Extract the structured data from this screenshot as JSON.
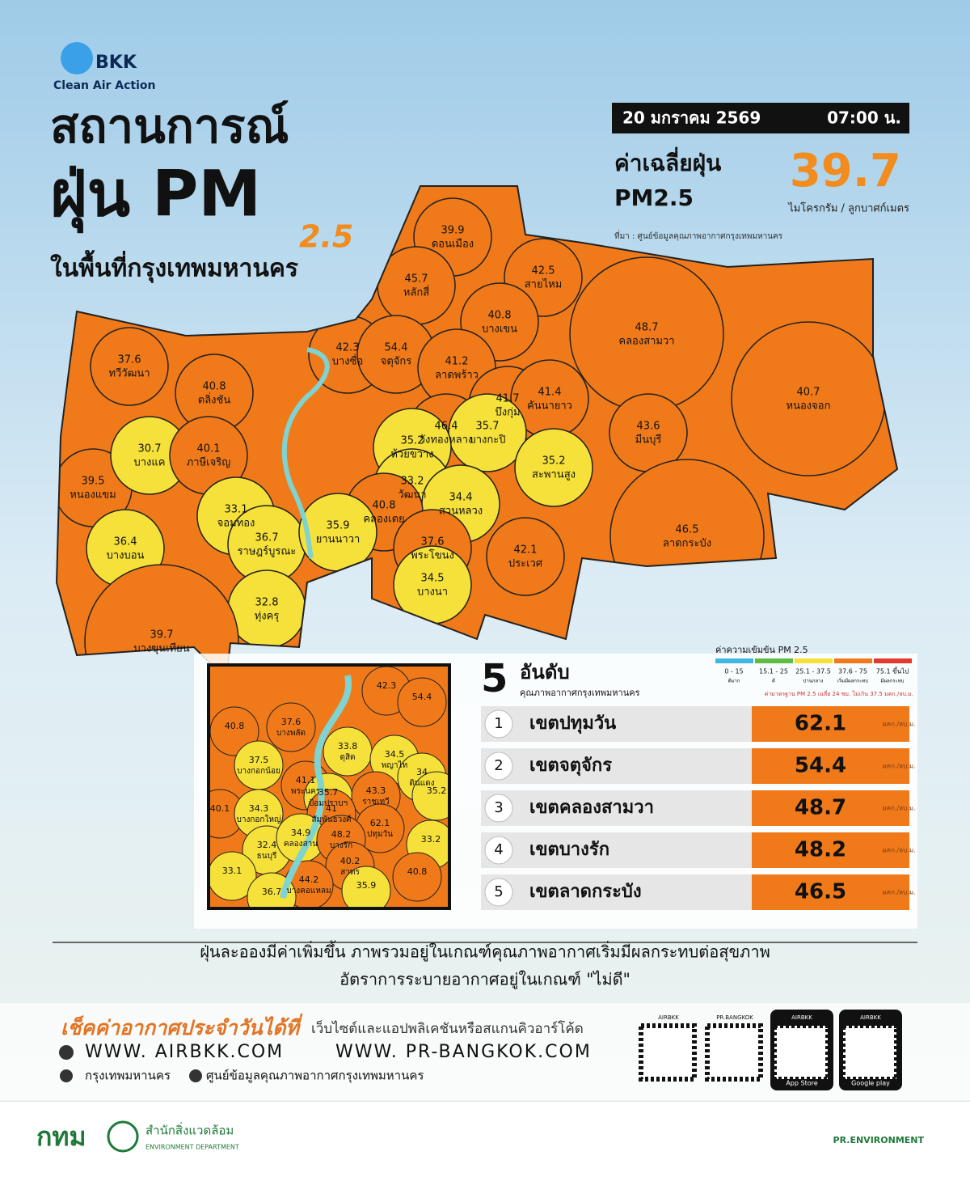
{
  "header": {
    "brand": "BKK",
    "brand_sub": "Clean Air Action",
    "title_line1": "สถานการณ์",
    "title_line2": "ฝุ่น PM",
    "title_sub": "2.5",
    "title_line3": "ในพื้นที่กรุงเทพมหานคร"
  },
  "date": "20 มกราคม 2569",
  "time": "07:00 น.",
  "average": {
    "label1": "ค่าเฉลี่ยฝุ่น",
    "label2": "PM2.5",
    "value": 39.7,
    "unit": "ไมโครกรัม / ลูกบาศก์เมตร"
  },
  "source": "ที่มา : ศูนย์ข้อมูลคุณภาพอากาศกรุงเทพมหานคร",
  "districts": [
    {
      "name": "ดอนเมือง",
      "value": 39.9
    },
    {
      "name": "สายไหม",
      "value": 42.5
    },
    {
      "name": "หลักสี่",
      "value": 45.7
    },
    {
      "name": "บางเขน",
      "value": 40.8
    },
    {
      "name": "คลองสามวา",
      "value": 48.7
    },
    {
      "name": "บางซื่อ",
      "value": 42.3
    },
    {
      "name": "จตุจักร",
      "value": 54.4
    },
    {
      "name": "ลาดพร้าว",
      "value": 41.2
    },
    {
      "name": "บึงกุ่ม",
      "value": 41.7
    },
    {
      "name": "คันนายาว",
      "value": 41.4
    },
    {
      "name": "หนองจอก",
      "value": 40.7
    },
    {
      "name": "ทวีวัฒนา",
      "value": 37.6
    },
    {
      "name": "ตลิ่งชัน",
      "value": 40.8
    },
    {
      "name": "มีนบุรี",
      "value": 43.6
    },
    {
      "name": "วังทองหลาง",
      "value": 46.4
    },
    {
      "name": "บางกะปิ",
      "value": 35.7
    },
    {
      "name": "ห้วยขวาง",
      "value": 35.2
    },
    {
      "name": "หนองแขม",
      "value": 39.5
    },
    {
      "name": "บางแค",
      "value": 30.7
    },
    {
      "name": "ภาษีเจริญ",
      "value": 40.1
    },
    {
      "name": "สะพานสูง",
      "value": 35.2
    },
    {
      "name": "วัฒนา",
      "value": 33.2
    },
    {
      "name": "สวนหลวง",
      "value": 34.4
    },
    {
      "name": "จอมทอง",
      "value": 33.1
    },
    {
      "name": "คลองเตย",
      "value": 40.8
    },
    {
      "name": "ลาดกระบัง",
      "value": 46.5
    },
    {
      "name": "บางบอน",
      "value": 36.4
    },
    {
      "name": "ราษฎร์บูรณะ",
      "value": 36.7
    },
    {
      "name": "ยานนาวา",
      "value": 35.9
    },
    {
      "name": "พระโขนง",
      "value": 37.6
    },
    {
      "name": "ประเวศ",
      "value": 42.1
    },
    {
      "name": "บางนา",
      "value": 34.5
    },
    {
      "name": "ทุ่งครุ",
      "value": 32.8
    },
    {
      "name": "บางขุนเทียน",
      "value": 39.7
    }
  ],
  "inset": [
    {
      "value": 42.3
    },
    {
      "value": 54.4
    },
    {
      "value": 40.8
    },
    {
      "name": "บางพลัด",
      "value": 37.6
    },
    {
      "name": "ดุสิต",
      "value": 33.8
    },
    {
      "name": "พญาไท",
      "value": 34.5
    },
    {
      "name": "บางกอกน้อย",
      "value": 37.5
    },
    {
      "name": "พระนคร",
      "value": 41.1
    },
    {
      "name": "ดินแดง",
      "value": 34.0
    },
    {
      "value": 35.2
    },
    {
      "value": 40.1
    },
    {
      "name": "ป้อมปราบฯ",
      "value": 35.7
    },
    {
      "name": "ราชเทวี",
      "value": 43.3
    },
    {
      "name": "บางกอกใหญ่",
      "value": 34.3
    },
    {
      "name": "สัมพันธวงศ์",
      "value": 41.0
    },
    {
      "name": "ปทุมวัน",
      "value": 62.1
    },
    {
      "name": "ธนบุรี",
      "value": 32.4
    },
    {
      "name": "คลองสาน",
      "value": 34.9
    },
    {
      "name": "บางรัก",
      "value": 48.2
    },
    {
      "value": 33.2
    },
    {
      "name": "สาทร",
      "value": 40.2
    },
    {
      "value": 40.8
    },
    {
      "value": 33.1
    },
    {
      "name": "บางคอแหลม",
      "value": 44.2
    },
    {
      "value": 35.9
    },
    {
      "value": 36.7
    }
  ],
  "ranking": {
    "number": "5",
    "title": "อันดับ",
    "subtitle": "คุณภาพอากาศกรุงเทพมหานคร",
    "unit": "มคก./ลบ.ม.",
    "items": [
      {
        "rank": "1",
        "name": "เขตปทุมวัน",
        "value": 62.1
      },
      {
        "rank": "2",
        "name": "เขตจตุจักร",
        "value": 54.4
      },
      {
        "rank": "3",
        "name": "เขตคลองสามวา",
        "value": 48.7
      },
      {
        "rank": "4",
        "name": "เขตบางรัก",
        "value": 48.2
      },
      {
        "rank": "5",
        "name": "เขตลาดกระบัง",
        "value": 46.5
      }
    ]
  },
  "legend": {
    "title": "ค่าความเข้มข้น PM 2.5",
    "note": "ค่ามาตรฐาน PM 2.5 เฉลี่ย 24 ชม. ไม่เกิน 37.5 มคก./ลบ.ม.",
    "levels": [
      {
        "range": "0 - 15",
        "label": "ดีมาก",
        "color": "#3fb8e6"
      },
      {
        "range": "15.1 - 25",
        "label": "ดี",
        "color": "#5dbb46"
      },
      {
        "range": "25.1 - 37.5",
        "label": "ปานกลาง",
        "color": "#f5e13a"
      },
      {
        "range": "37.6 - 75",
        "label": "เริ่มมีผลกระทบ",
        "color": "#f07a1a"
      },
      {
        "range": "75.1 ขึ้นไป",
        "label": "มีผลกระทบ",
        "color": "#e23b2e"
      }
    ]
  },
  "summary": [
    "ฝุ่นละอองมีค่าเพิ่มขึ้น ภาพรวมอยู่ในเกณฑ์คุณภาพอากาศเริ่มมีผลกระทบต่อสุขภาพ",
    "อัตราการระบายอากาศอยู่ในเกณฑ์ \"ไม่ดี\""
  ],
  "footer": {
    "check": "เช็คค่าอากาศประจำวันได้ที่",
    "check_sub": "เว็บไซต์และแอปพลิเคชันหรือสแกนคิวอาร์โค้ด",
    "url1": "WWW. AIRBKK.COM",
    "url2": "WWW. PR-BANGKOK.COM",
    "fb1": "กรุงเทพมหานคร",
    "fb2": "ศูนย์ข้อมูลคุณภาพอากาศกรุงเทพมหานคร",
    "qr": [
      "AIRBKK",
      "PR.BANGKOK",
      "AIRBKK",
      "AIRBKK"
    ],
    "store1": "App Store",
    "store2": "Google play",
    "agency_short": "กทม",
    "agency": "สำนักสิ่งแวดล้อม",
    "agency_en": "ENVIRONMENT DEPARTMENT",
    "social": "PR.ENVIRONMENT"
  }
}
